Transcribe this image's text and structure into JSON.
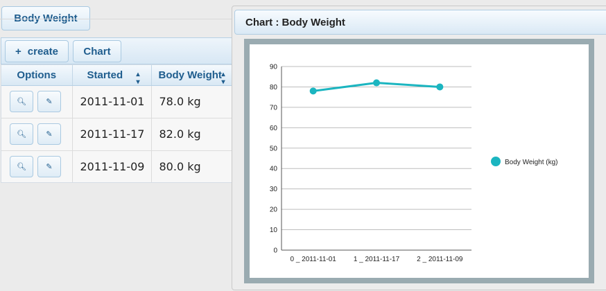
{
  "page": {
    "title_tab": "Body Weight"
  },
  "toolbar": {
    "create_icon": "+",
    "create_label": "create",
    "chart_label": "Chart"
  },
  "table": {
    "headers": {
      "options": "Options",
      "started": "Started",
      "body_weight": "Body Weight"
    },
    "rows": [
      {
        "started": "2011-11-01",
        "weight": "78.0 kg"
      },
      {
        "started": "2011-11-17",
        "weight": "82.0 kg"
      },
      {
        "started": "2011-11-09",
        "weight": "80.0 kg"
      }
    ],
    "row_icons": [
      "search-icon",
      "pencil-icon"
    ]
  },
  "chart_panel": {
    "title": "Chart : Body Weight"
  },
  "colors": {
    "accent_blue": "#1f5d8e",
    "series_teal": "#1bb5c0",
    "frame_gray": "#9aabb1"
  },
  "chart_data": {
    "type": "line",
    "categories": [
      "0 _ 2011-11-01",
      "1 _ 2011-11-17",
      "2 _ 2011-11-09"
    ],
    "series": [
      {
        "name": "Body Weight (kg)",
        "values": [
          78,
          82,
          80
        ]
      }
    ],
    "yticks": [
      0,
      10,
      20,
      30,
      40,
      50,
      60,
      70,
      80,
      90
    ],
    "ylim": [
      0,
      90
    ],
    "grid": true,
    "legend": "right"
  }
}
